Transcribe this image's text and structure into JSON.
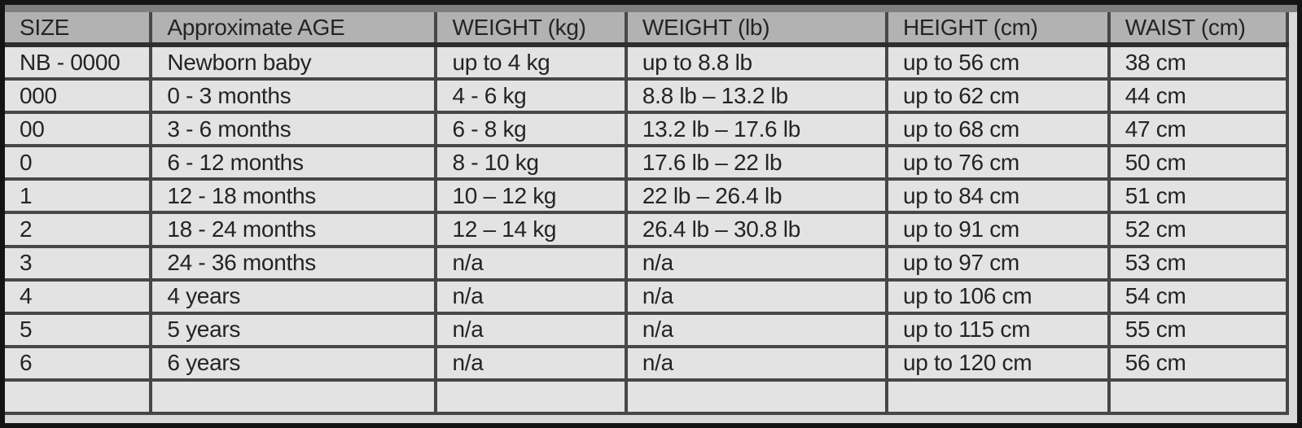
{
  "colors": {
    "frame": "#141414",
    "top_strip": "#7f7f7f",
    "gutter_bg": "#d9d9d9",
    "header_bg": "#b2b2b2",
    "row_bg": "#e3e3e3",
    "grid_line": "#474747",
    "header_sep": "#2e2e2e",
    "text": "#242424"
  },
  "table": {
    "columns": [
      "SIZE",
      "Approximate AGE",
      "WEIGHT (kg)",
      "WEIGHT (lb)",
      "HEIGHT (cm)",
      "WAIST (cm)"
    ],
    "rows": [
      {
        "cells": [
          "NB - 0000",
          "Newborn baby",
          "up to 4 kg",
          "up to 8.8 lb",
          "up to 56 cm",
          "38 cm"
        ]
      },
      {
        "cells": [
          "000",
          "0 - 3 months",
          "4 - 6 kg",
          "8.8 lb – 13.2 lb",
          "up to 62 cm",
          "44 cm"
        ]
      },
      {
        "cells": [
          "00",
          "3 - 6 months",
          "6 - 8 kg",
          "13.2 lb – 17.6 lb",
          "up to 68 cm",
          "47 cm"
        ]
      },
      {
        "cells": [
          "0",
          "6 - 12 months",
          "8 - 10 kg",
          "17.6 lb – 22 lb",
          "up to 76 cm",
          "50 cm"
        ]
      },
      {
        "cells": [
          "1",
          "12 - 18 months",
          "10 – 12 kg",
          "22 lb – 26.4 lb",
          "up to 84 cm",
          "51 cm"
        ]
      },
      {
        "cells": [
          "2",
          "18 - 24 months",
          "12 – 14 kg",
          "26.4 lb – 30.8 lb",
          "up to 91 cm",
          "52 cm"
        ]
      },
      {
        "cells": [
          "3",
          "24 - 36 months",
          "n/a",
          "n/a",
          "up to 97 cm",
          "53 cm"
        ]
      },
      {
        "cells": [
          "4",
          "4 years",
          "n/a",
          "n/a",
          "up to 106 cm",
          "54 cm"
        ]
      },
      {
        "cells": [
          "5",
          "5 years",
          "n/a",
          "n/a",
          "up to 115 cm",
          "55 cm"
        ]
      },
      {
        "cells": [
          "6",
          "6 years",
          "n/a",
          "n/a",
          "up to 120 cm",
          "56 cm"
        ]
      }
    ]
  }
}
